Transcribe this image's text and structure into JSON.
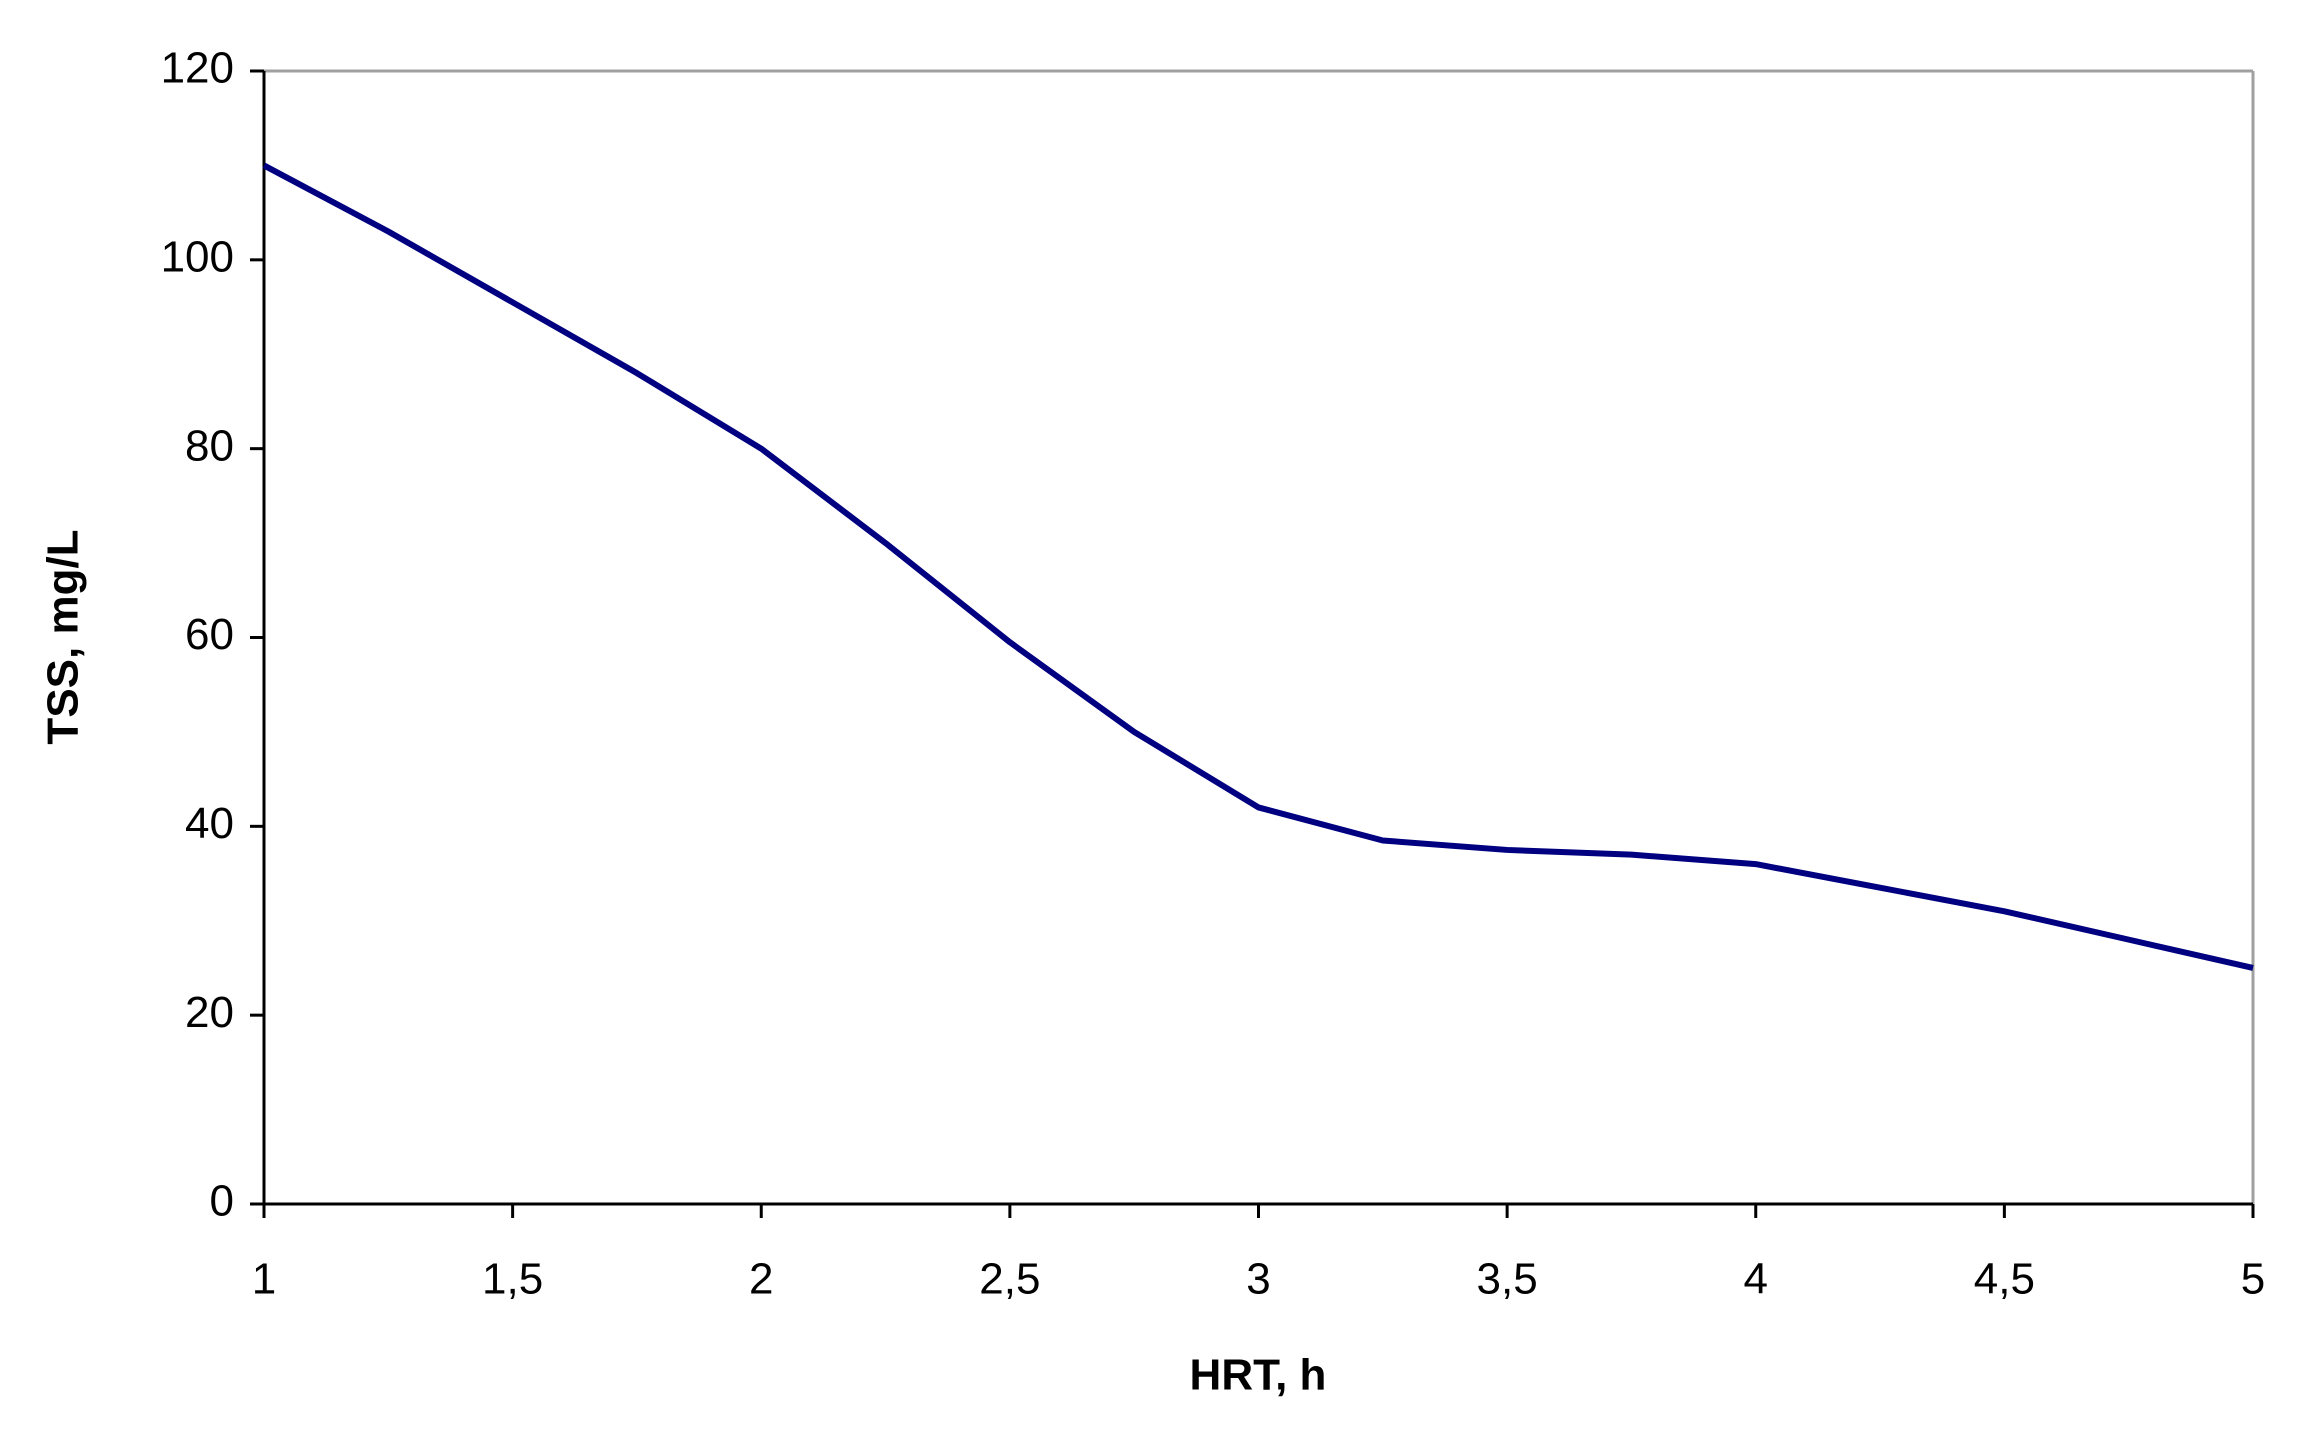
{
  "chart_data": {
    "type": "line",
    "x_label": "HRT, h",
    "y_label": "TSS, mg/L",
    "x": [
      1,
      1.25,
      1.5,
      1.75,
      2,
      2.25,
      2.5,
      2.75,
      3,
      3.25,
      3.5,
      3.75,
      4,
      4.25,
      4.5,
      4.75,
      5
    ],
    "series": [
      {
        "color": "#000080",
        "values": [
          110,
          103,
          95.5,
          88,
          80,
          70,
          59.5,
          50,
          42,
          38.5,
          37.5,
          37,
          36,
          33.5,
          31,
          28,
          25
        ]
      }
    ],
    "xlim": [
      1,
      5
    ],
    "xticks": [
      1,
      {
        "value": 1.5,
        "label": "1,5"
      },
      2,
      {
        "value": 2.5,
        "label": "2,5"
      },
      3,
      {
        "value": 3.5,
        "label": "3,5"
      },
      4,
      {
        "value": 4.5,
        "label": "4,5"
      },
      5
    ],
    "ylim": [
      0,
      120
    ],
    "yticks": [
      0,
      20,
      40,
      60,
      80,
      100,
      120
    ],
    "grid": false
  }
}
